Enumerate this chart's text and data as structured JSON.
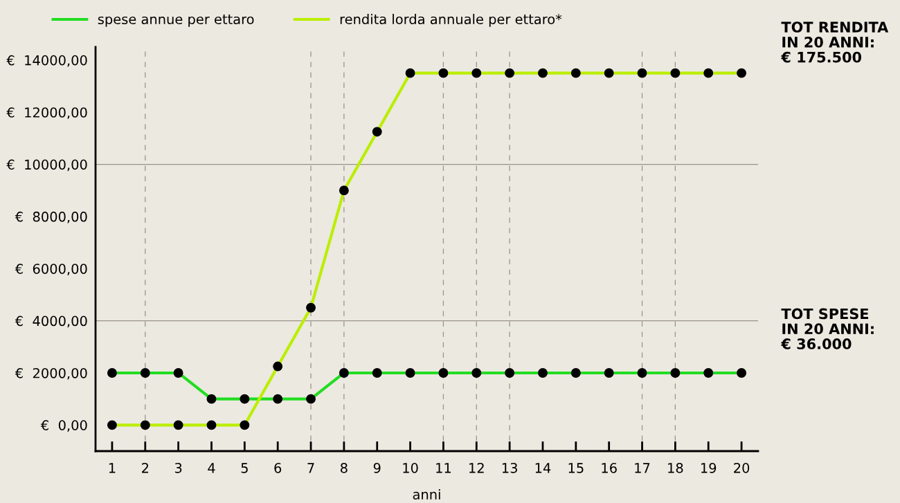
{
  "chart_data": {
    "type": "line",
    "xlabel": "anni",
    "x": [
      1,
      2,
      3,
      4,
      5,
      6,
      7,
      8,
      9,
      10,
      11,
      12,
      13,
      14,
      15,
      16,
      17,
      18,
      19,
      20
    ],
    "xlim": [
      0.5,
      20.5
    ],
    "xticks": [
      1,
      2,
      3,
      4,
      5,
      6,
      7,
      8,
      9,
      10,
      11,
      12,
      13,
      14,
      15,
      16,
      17,
      18,
      19,
      20
    ],
    "ylim": [
      -1000,
      14500
    ],
    "yticks": [
      {
        "value": 0,
        "label": "€  0,00"
      },
      {
        "value": 2000,
        "label": "€  2000,00"
      },
      {
        "value": 4000,
        "label": "€  4000,00"
      },
      {
        "value": 6000,
        "label": "€  6000,00"
      },
      {
        "value": 8000,
        "label": "€  8000,00"
      },
      {
        "value": 10000,
        "label": "€  10000,00"
      },
      {
        "value": 12000,
        "label": "€  12000,00"
      },
      {
        "value": 14000,
        "label": "€  14000,00"
      }
    ],
    "series": [
      {
        "name": "spese annue per ettaro",
        "color": "#22dd22",
        "values": [
          2000,
          2000,
          2000,
          1000,
          1000,
          1000,
          1000,
          2000,
          2000,
          2000,
          2000,
          2000,
          2000,
          2000,
          2000,
          2000,
          2000,
          2000,
          2000,
          2000
        ]
      },
      {
        "name": "rendita lorda annuale per ettaro*",
        "color": "#bbee00",
        "values": [
          0,
          0,
          0,
          0,
          0,
          2250,
          4500,
          9000,
          11250,
          13500,
          13500,
          13500,
          13500,
          13500,
          13500,
          13500,
          13500,
          13500,
          13500,
          13500
        ]
      }
    ],
    "ref_lines": [
      {
        "axis": "y",
        "value": 4000,
        "color": "#9a9288",
        "line_style": "solid"
      },
      {
        "axis": "y",
        "value": 10000,
        "color": "#9a9288",
        "line_style": "solid"
      },
      {
        "axis": "x",
        "value": 2,
        "color": "#9a9288",
        "line_style": "dashed"
      },
      {
        "axis": "x",
        "value": 7,
        "color": "#9a9288",
        "line_style": "dashed"
      },
      {
        "axis": "x",
        "value": 8,
        "color": "#9a9288",
        "line_style": "dashed"
      },
      {
        "axis": "x",
        "value": 11,
        "color": "#9a9288",
        "line_style": "dashed"
      },
      {
        "axis": "x",
        "value": 12,
        "color": "#9a9288",
        "line_style": "dashed"
      },
      {
        "axis": "x",
        "value": 13,
        "color": "#9a9288",
        "line_style": "dashed"
      },
      {
        "axis": "x",
        "value": 17,
        "color": "#9a9288",
        "line_style": "dashed"
      },
      {
        "axis": "x",
        "value": 18,
        "color": "#9a9288",
        "line_style": "dashed"
      }
    ],
    "annotations": [
      "TOT RENDITA\nIN 20 ANNI:\n€ 175.500",
      "TOT SPESE\nIN 20 ANNI:\n€ 36.000"
    ],
    "marker": "circle",
    "line_style": "solid",
    "grid": false,
    "legend": "top"
  }
}
